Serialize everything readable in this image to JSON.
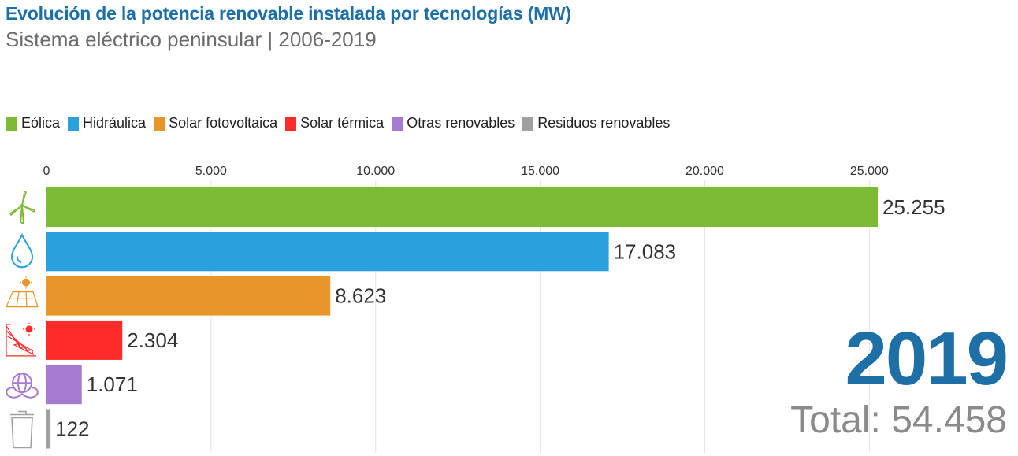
{
  "header": {
    "title": "Evolución de la potencia renovable instalada por tecnologías (MW)",
    "subtitle": "Sistema eléctrico peninsular | 2006-2019"
  },
  "legend": [
    {
      "label": "Eólica",
      "color": "#7dba35"
    },
    {
      "label": "Hidráulica",
      "color": "#2aa1dc"
    },
    {
      "label": "Solar fotovoltaica",
      "color": "#e8952a"
    },
    {
      "label": "Solar térmica",
      "color": "#ff2a2a"
    },
    {
      "label": "Otras renovables",
      "color": "#a57ad0"
    },
    {
      "label": "Residuos renovables",
      "color": "#a0a0a0"
    }
  ],
  "overlay": {
    "year": "2019",
    "total": "Total: 54.458"
  },
  "chart_data": {
    "type": "bar",
    "orientation": "horizontal",
    "categories": [
      "Eólica",
      "Hidráulica",
      "Solar fotovoltaica",
      "Solar térmica",
      "Otras renovables",
      "Residuos renovables"
    ],
    "values": [
      25255,
      17083,
      8623,
      2304,
      1071,
      122
    ],
    "value_labels": [
      "25.255",
      "17.083",
      "8.623",
      "2.304",
      "1.071",
      "122"
    ],
    "colors": [
      "#7dba35",
      "#2aa1dc",
      "#e8952a",
      "#ff2a2a",
      "#a57ad0",
      "#a0a0a0"
    ],
    "icons": [
      "wind-turbine-icon",
      "water-drop-icon",
      "solar-panel-icon",
      "solar-thermal-icon",
      "globe-leaf-icon",
      "trash-bin-icon"
    ],
    "x_ticks": [
      0,
      5000,
      10000,
      15000,
      20000,
      25000
    ],
    "x_tick_labels": [
      "0",
      "5.000",
      "10.000",
      "15.000",
      "20.000",
      "25.000"
    ],
    "xlim": [
      0,
      25255
    ],
    "grid": true,
    "title": "Evolución de la potencia renovable instalada por tecnologías (MW)",
    "xlabel": "",
    "ylabel": ""
  }
}
